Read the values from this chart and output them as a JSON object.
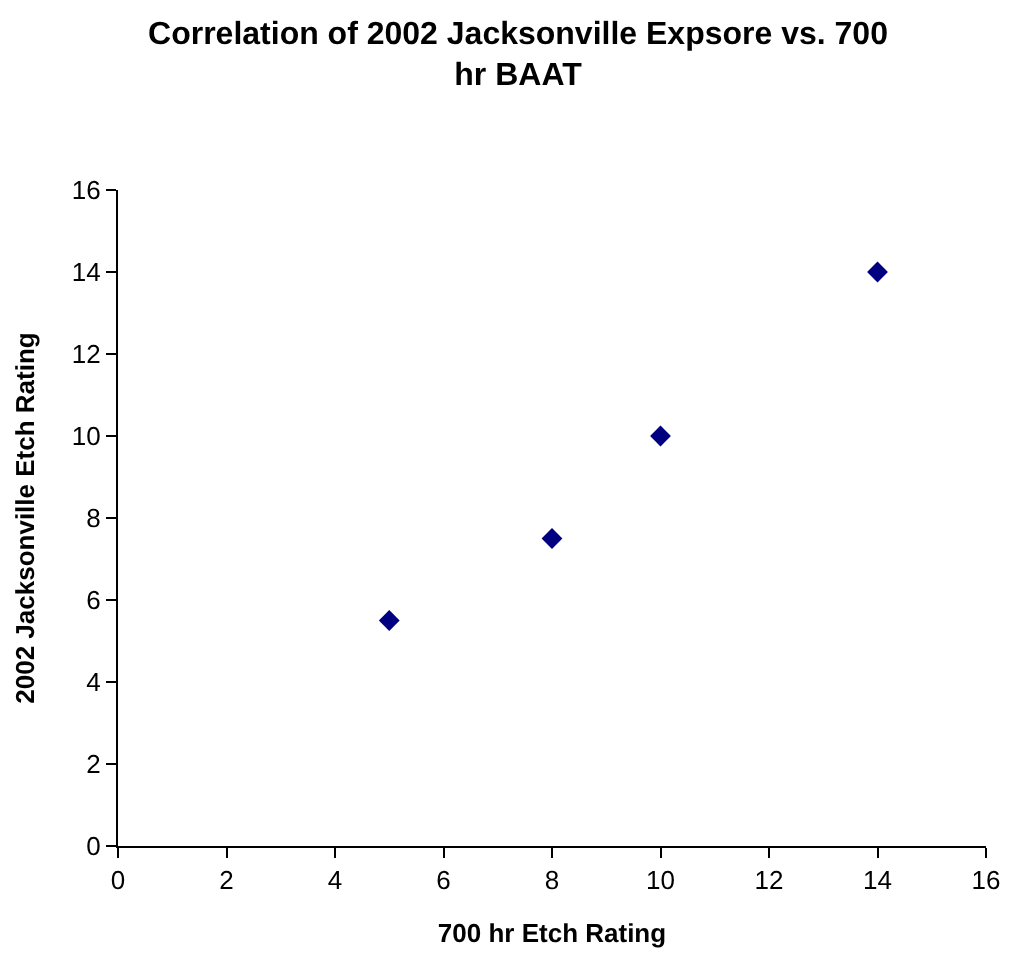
{
  "chart_data": {
    "type": "scatter",
    "title": "Correlation of 2002 Jacksonville Expsore vs. 700 hr BAAT",
    "xlabel": "700 hr Etch Rating",
    "ylabel": "2002 Jacksonville Etch Rating",
    "x": [
      5,
      8,
      10,
      14
    ],
    "series": [
      {
        "color": "#000080",
        "values": [
          5.5,
          7.5,
          10,
          14
        ]
      }
    ],
    "xlim": [
      0,
      16
    ],
    "ylim": [
      0,
      16
    ],
    "xticks": [
      0,
      2,
      4,
      6,
      8,
      10,
      12,
      14,
      16
    ],
    "yticks": [
      0,
      2,
      4,
      6,
      8,
      10,
      12,
      14,
      16
    ],
    "marker": "diamond"
  }
}
